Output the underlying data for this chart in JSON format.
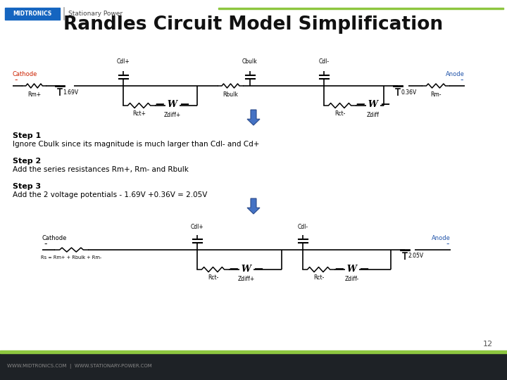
{
  "title": "Randles Circuit Model Simplification",
  "bg_color": "#ffffff",
  "footer_bg": "#1e2226",
  "green_bar_color": "#8dc63f",
  "footer_left": "WWW.MIDTRONICS.COM  |  WWW.STATIONARY-POWER.COM",
  "page_number": "12",
  "cathode_color": "#cc2200",
  "anode_color": "#2255aa",
  "step1_bold": "Step 1",
  "step1_text": "Ignore Cbulk since its magnitude is much larger than Cdl- and Cd+",
  "step2_bold": "Step 2",
  "step2_text": "Add the series resistances Rm+, Rm- and Rbulk",
  "step3_bold": "Step 3",
  "step3_text": "Add the 2 voltage potentials - 1.69V +0.36V = 2.05V"
}
